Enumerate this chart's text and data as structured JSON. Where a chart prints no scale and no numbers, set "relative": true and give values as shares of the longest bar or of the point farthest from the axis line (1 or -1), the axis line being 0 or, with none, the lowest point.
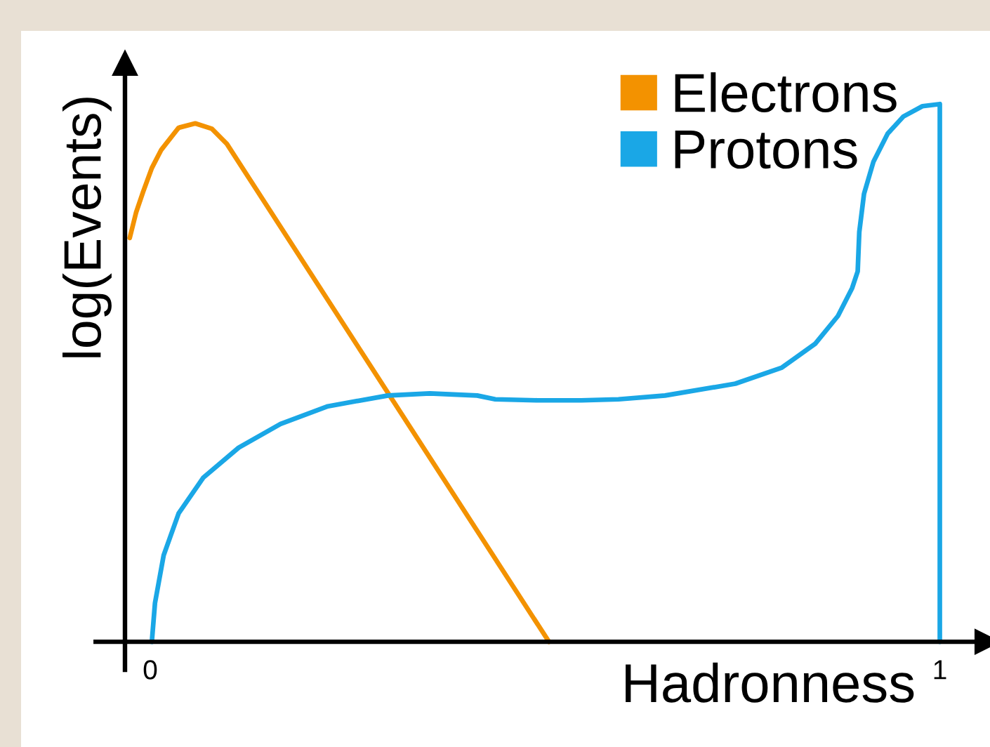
{
  "chart_data": {
    "type": "line",
    "xlabel": "Hadronness",
    "ylabel": "log(Events)",
    "relative": true,
    "xlim": [
      -0.032,
      1.06
    ],
    "xticks": [
      0,
      1
    ],
    "legend": "top right",
    "grid": false,
    "marker": "none",
    "line_style": "solid",
    "series": [
      {
        "name": "Electrons",
        "color": "#f39200",
        "x": [
          -0.026,
          -0.018,
          -0.009,
          0.002,
          0.014,
          0.036,
          0.057,
          0.078,
          0.097,
          0.505
        ],
        "values": [
          0.751,
          0.798,
          0.837,
          0.881,
          0.915,
          0.956,
          0.964,
          0.954,
          0.926,
          0.0
        ]
      },
      {
        "name": "Protons",
        "color": "#1aa7e6",
        "x": [
          0.002,
          0.006,
          0.017,
          0.036,
          0.067,
          0.112,
          0.165,
          0.225,
          0.301,
          0.354,
          0.414,
          0.437,
          0.49,
          0.546,
          0.593,
          0.652,
          0.741,
          0.8,
          0.842,
          0.871,
          0.889,
          0.896,
          0.898,
          0.904,
          0.916,
          0.934,
          0.954,
          0.978,
          1.0,
          1.0
        ],
        "values": [
          0.0,
          0.072,
          0.161,
          0.239,
          0.305,
          0.361,
          0.405,
          0.438,
          0.458,
          0.462,
          0.458,
          0.451,
          0.449,
          0.449,
          0.451,
          0.458,
          0.48,
          0.51,
          0.554,
          0.606,
          0.658,
          0.689,
          0.762,
          0.833,
          0.893,
          0.945,
          0.977,
          0.996,
          1.0,
          0.0
        ]
      }
    ]
  }
}
